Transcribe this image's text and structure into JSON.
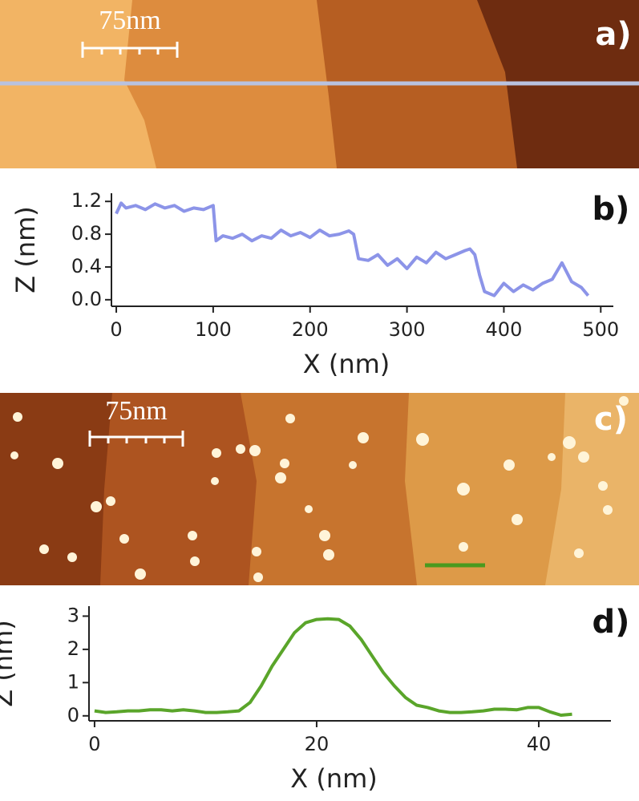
{
  "panels": [
    {
      "label": "a)",
      "scale_bar": "75nm"
    },
    {
      "label": "c)",
      "scale_bar": "75nm"
    }
  ],
  "chart_data": [
    {
      "type": "line",
      "panel_label": "b)",
      "x_label": "X (nm)",
      "y_label": "Z (nm)",
      "color": "#8c94e8",
      "x": [
        0,
        5,
        10,
        20,
        30,
        40,
        50,
        60,
        70,
        80,
        90,
        100,
        103,
        110,
        120,
        130,
        140,
        150,
        160,
        170,
        180,
        190,
        200,
        210,
        220,
        230,
        240,
        245,
        250,
        260,
        270,
        280,
        290,
        300,
        310,
        320,
        330,
        340,
        350,
        360,
        365,
        370,
        375,
        380,
        390,
        400,
        410,
        420,
        430,
        440,
        450,
        460,
        470,
        480,
        487
      ],
      "values": [
        1.05,
        1.18,
        1.12,
        1.15,
        1.1,
        1.17,
        1.12,
        1.15,
        1.08,
        1.12,
        1.1,
        1.15,
        0.72,
        0.78,
        0.75,
        0.8,
        0.72,
        0.78,
        0.75,
        0.85,
        0.78,
        0.82,
        0.76,
        0.85,
        0.78,
        0.8,
        0.84,
        0.8,
        0.5,
        0.48,
        0.55,
        0.42,
        0.5,
        0.38,
        0.52,
        0.45,
        0.58,
        0.5,
        0.55,
        0.6,
        0.62,
        0.55,
        0.3,
        0.1,
        0.05,
        0.2,
        0.1,
        0.18,
        0.12,
        0.2,
        0.25,
        0.45,
        0.22,
        0.15,
        0.05
      ],
      "xlim": [
        -5,
        513
      ],
      "ylim": [
        -0.08,
        1.3
      ],
      "xticks": [
        0,
        100,
        200,
        300,
        400,
        500
      ],
      "yticks": [
        {
          "value": 0,
          "label": "0.0"
        },
        0.4,
        0.8,
        1.2
      ]
    },
    {
      "type": "line",
      "panel_label": "d)",
      "x_label": "X (nm)",
      "y_label": "Z (nm)",
      "color": "#5aa52a",
      "x": [
        0,
        1,
        2,
        3,
        4,
        5,
        6,
        7,
        8,
        9,
        10,
        11,
        12,
        13,
        14,
        15,
        16,
        17,
        18,
        19,
        20,
        21,
        22,
        23,
        24,
        25,
        26,
        27,
        28,
        29,
        30,
        31,
        32,
        33,
        34,
        35,
        36,
        37,
        38,
        39,
        40,
        41,
        42,
        43
      ],
      "values": [
        0.15,
        0.1,
        0.12,
        0.15,
        0.15,
        0.18,
        0.18,
        0.15,
        0.18,
        0.15,
        0.1,
        0.1,
        0.12,
        0.15,
        0.4,
        0.9,
        1.5,
        2.0,
        2.5,
        2.8,
        2.9,
        2.92,
        2.9,
        2.7,
        2.3,
        1.8,
        1.3,
        0.9,
        0.55,
        0.32,
        0.25,
        0.15,
        0.1,
        0.1,
        0.12,
        0.15,
        0.2,
        0.2,
        0.18,
        0.25,
        0.25,
        0.12,
        0.02,
        0.05
      ],
      "xlim": [
        -0.5,
        46.5
      ],
      "ylim": [
        -0.15,
        3.3
      ],
      "xticks": [
        0,
        20,
        40
      ],
      "yticks": [
        0,
        1,
        2,
        3
      ]
    }
  ]
}
